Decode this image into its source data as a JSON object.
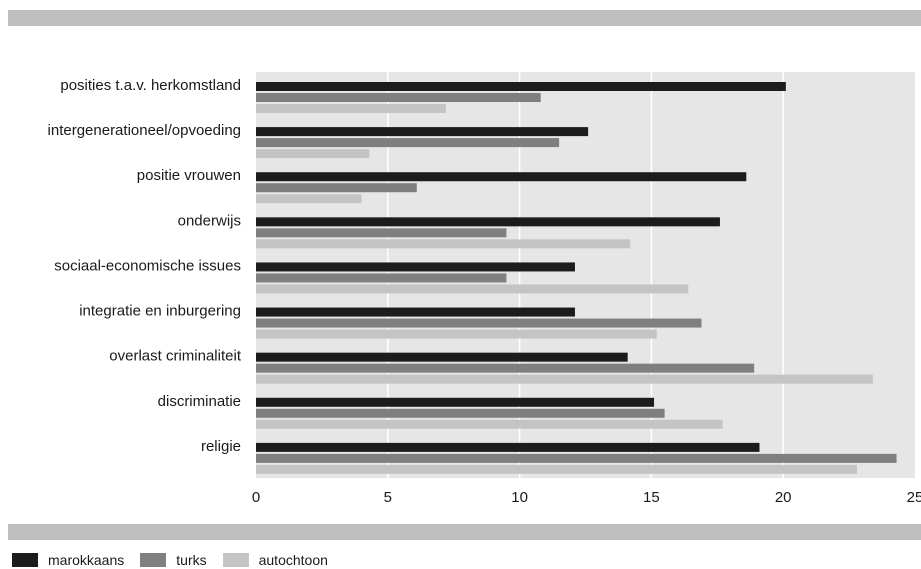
{
  "chart_data": {
    "type": "bar",
    "orientation": "horizontal",
    "categories": [
      "posities t.a.v. herkomstland",
      "intergenerationeel/opvoeding",
      "positie vrouwen",
      "onderwijs",
      "sociaal-economische issues",
      "integratie en inburgering",
      "overlast criminaliteit",
      "discriminatie",
      "religie"
    ],
    "series": [
      {
        "name": "marokkaans",
        "color": "#1c1c1c",
        "values": [
          20.1,
          12.6,
          18.6,
          17.6,
          12.1,
          12.1,
          14.1,
          15.1,
          19.1
        ]
      },
      {
        "name": "turks",
        "color": "#7f7f7f",
        "values": [
          10.8,
          11.5,
          6.1,
          9.5,
          9.5,
          16.9,
          18.9,
          15.5,
          24.3
        ]
      },
      {
        "name": "autochtoon",
        "color": "#c4c4c4",
        "values": [
          7.2,
          4.3,
          4.0,
          14.2,
          16.4,
          15.2,
          23.4,
          17.7,
          22.8
        ]
      }
    ],
    "xlim": [
      0,
      25
    ],
    "xticks": [
      "0",
      "5",
      "10",
      "15",
      "20",
      "25"
    ],
    "grid": true,
    "legend_position": "bottom-left",
    "title": "",
    "xlabel": "",
    "ylabel": ""
  },
  "colors": {
    "plot_background": "#e6e6e6",
    "gridline": "#ffffff",
    "band": "#bfbfbf"
  }
}
